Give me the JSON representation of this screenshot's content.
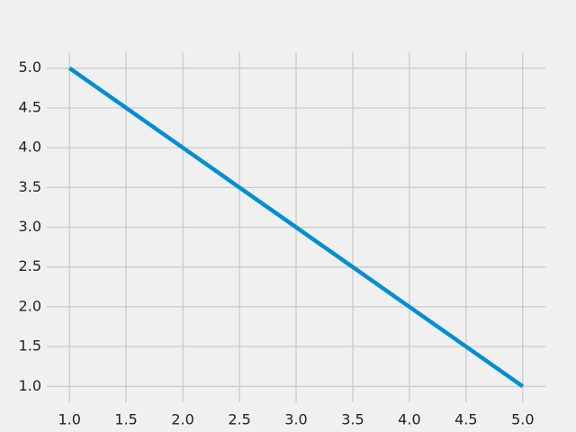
{
  "chart_data": {
    "type": "line",
    "title": "",
    "xlabel": "",
    "ylabel": "",
    "grid": true,
    "xlim": [
      0.8,
      5.2
    ],
    "ylim": [
      0.8,
      5.2
    ],
    "x_ticks": [
      1.0,
      1.5,
      2.0,
      2.5,
      3.0,
      3.5,
      4.0,
      4.5,
      5.0
    ],
    "y_ticks": [
      1.0,
      1.5,
      2.0,
      2.5,
      3.0,
      3.5,
      4.0,
      4.5,
      5.0
    ],
    "x_tick_labels": [
      "1.0",
      "1.5",
      "2.0",
      "2.5",
      "3.0",
      "3.5",
      "4.0",
      "4.5",
      "5.0"
    ],
    "y_tick_labels": [
      "1.0",
      "1.5",
      "2.0",
      "2.5",
      "3.0",
      "3.5",
      "4.0",
      "4.5",
      "5.0"
    ],
    "series": [
      {
        "x": [
          1,
          2,
          3,
          4,
          5
        ],
        "y": [
          5,
          4,
          3,
          2,
          1
        ],
        "color": "#008fd5"
      }
    ],
    "colors": {
      "background": "#f0f0f0",
      "grid": "#cbcbcb",
      "text": "#222222"
    }
  }
}
